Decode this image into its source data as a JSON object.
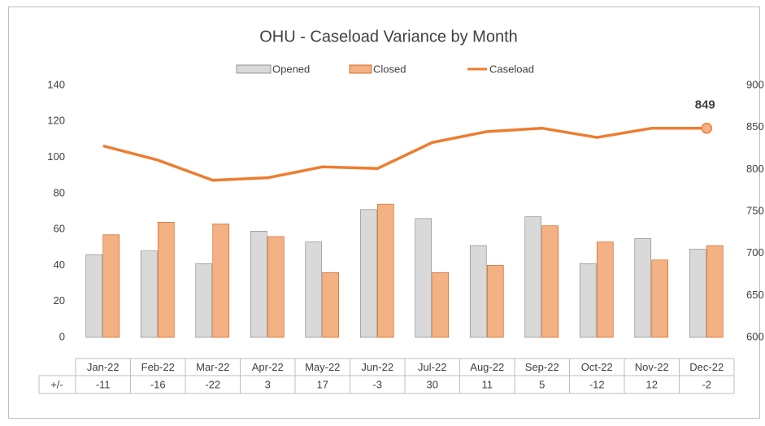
{
  "chart_data": {
    "type": "bar_line_table",
    "title": "OHU - Caseload Variance by Month",
    "categories": [
      "Jan-22",
      "Feb-22",
      "Mar-22",
      "Apr-22",
      "May-22",
      "Jun-22",
      "Jul-22",
      "Aug-22",
      "Sep-22",
      "Oct-22",
      "Nov-22",
      "Dec-22"
    ],
    "series": [
      {
        "name": "Opened",
        "type": "bar",
        "color": "#d9d9d9",
        "values": [
          46,
          48,
          41,
          59,
          53,
          71,
          66,
          51,
          67,
          41,
          55,
          49
        ]
      },
      {
        "name": "Closed",
        "type": "bar",
        "color": "#f4b183",
        "values": [
          57,
          64,
          63,
          56,
          36,
          74,
          36,
          40,
          62,
          53,
          43,
          51
        ]
      },
      {
        "name": "Caseload",
        "type": "line",
        "axis": "y2",
        "color": "#ed7d31",
        "values": [
          828,
          811,
          787,
          790,
          803,
          801,
          832,
          845,
          849,
          838,
          849,
          849
        ]
      }
    ],
    "ylim": [
      0,
      140
    ],
    "yticks": [
      0,
      20,
      40,
      60,
      80,
      100,
      120,
      140
    ],
    "y2lim": [
      600,
      900
    ],
    "y2ticks": [
      600,
      650,
      700,
      750,
      800,
      850,
      900
    ],
    "table_row": {
      "label": "+/-",
      "values": [
        "-11",
        "-16",
        "-22",
        "3",
        "17",
        "-3",
        "30",
        "11",
        "5",
        "-12",
        "12",
        "-2"
      ]
    },
    "legend": "top",
    "grid": false
  }
}
